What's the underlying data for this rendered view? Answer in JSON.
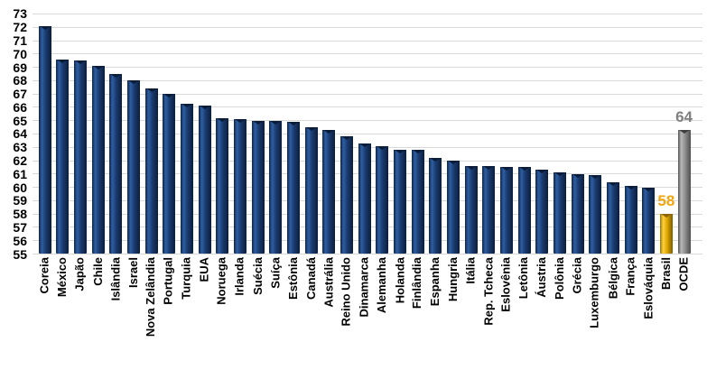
{
  "chart_data": {
    "type": "bar",
    "title": "",
    "xlabel": "",
    "ylabel": "",
    "ylim": [
      55,
      73
    ],
    "grid": true,
    "legend_position": "none",
    "yticks": [
      55,
      56,
      57,
      58,
      59,
      60,
      61,
      62,
      63,
      64,
      65,
      66,
      67,
      68,
      69,
      70,
      71,
      72,
      73
    ],
    "categories": [
      "Coreia",
      "México",
      "Japão",
      "Chile",
      "Islândia",
      "Israel",
      "Nova Zelândia",
      "Portugal",
      "Turquia",
      "EUA",
      "Noruega",
      "Irlanda",
      "Suécia",
      "Suíça",
      "Estônia",
      "Canadá",
      "Austrália",
      "Reino Unido",
      "Dinamarca",
      "Alemanha",
      "Holanda",
      "Finlândia",
      "Espanha",
      "Hungria",
      "Itália",
      "Rep. Tcheca",
      "Eslovênia",
      "Letônia",
      "Áustria",
      "Polônia",
      "Grécia",
      "Luxemburgo",
      "Bélgica",
      "França",
      "Eslováquia",
      "Brasil",
      "OCDE"
    ],
    "values": [
      72.1,
      69.6,
      69.5,
      69.1,
      68.5,
      68.0,
      67.4,
      67.0,
      66.3,
      66.1,
      65.2,
      65.1,
      65.0,
      65.0,
      64.9,
      64.5,
      64.3,
      63.8,
      63.3,
      63.1,
      62.8,
      62.8,
      62.2,
      62.0,
      61.6,
      61.6,
      61.5,
      61.5,
      61.3,
      61.1,
      61.0,
      60.9,
      60.4,
      60.1,
      60.0,
      58.0,
      64.3
    ],
    "roles": [
      "default",
      "default",
      "default",
      "default",
      "default",
      "default",
      "default",
      "default",
      "default",
      "default",
      "default",
      "default",
      "default",
      "default",
      "default",
      "default",
      "default",
      "default",
      "default",
      "default",
      "default",
      "default",
      "default",
      "default",
      "default",
      "default",
      "default",
      "default",
      "default",
      "default",
      "default",
      "default",
      "default",
      "default",
      "default",
      "highlight",
      "neutral"
    ],
    "annotations": [
      {
        "category": "Brasil",
        "text": "58",
        "role": "highlight"
      },
      {
        "category": "OCDE",
        "text": "64",
        "role": "neutral"
      }
    ],
    "colors": {
      "bar_default": "#1A3A6D",
      "bar_highlight": "#E8B007",
      "bar_neutral": "#8F8F8F",
      "grid": "#D9D9D9",
      "axis_text": "#000000",
      "annotation_highlight": "#F2A50C",
      "annotation_neutral": "#7F7F7F"
    }
  }
}
